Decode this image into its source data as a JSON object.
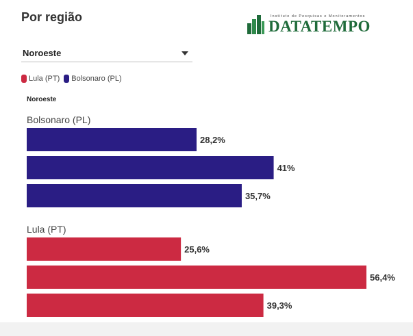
{
  "page": {
    "title": "Por região"
  },
  "logo": {
    "tagline": "Instituto de Pesquisas e Monitoramentos",
    "wordmark": "DATATEMPO"
  },
  "region_select": {
    "selected": "Noroeste"
  },
  "legend": [
    {
      "label": "Lula (PT)",
      "color": "#cc2a42"
    },
    {
      "label": "Bolsonaro (PL)",
      "color": "#2a1d84"
    }
  ],
  "chart_data": {
    "type": "bar",
    "orientation": "horizontal",
    "subtitle": "Noroeste",
    "xlim": [
      0,
      60
    ],
    "groups": [
      {
        "name": "Bolsonaro (PL)",
        "color": "#2a1d84",
        "values": [
          28.2,
          41,
          35.7
        ],
        "labels": [
          "28,2%",
          "41%",
          "35,7%"
        ]
      },
      {
        "name": "Lula (PT)",
        "color": "#cc2a42",
        "values": [
          25.6,
          56.4,
          39.3
        ],
        "labels": [
          "25,6%",
          "56,4%",
          "39,3%"
        ]
      }
    ]
  }
}
